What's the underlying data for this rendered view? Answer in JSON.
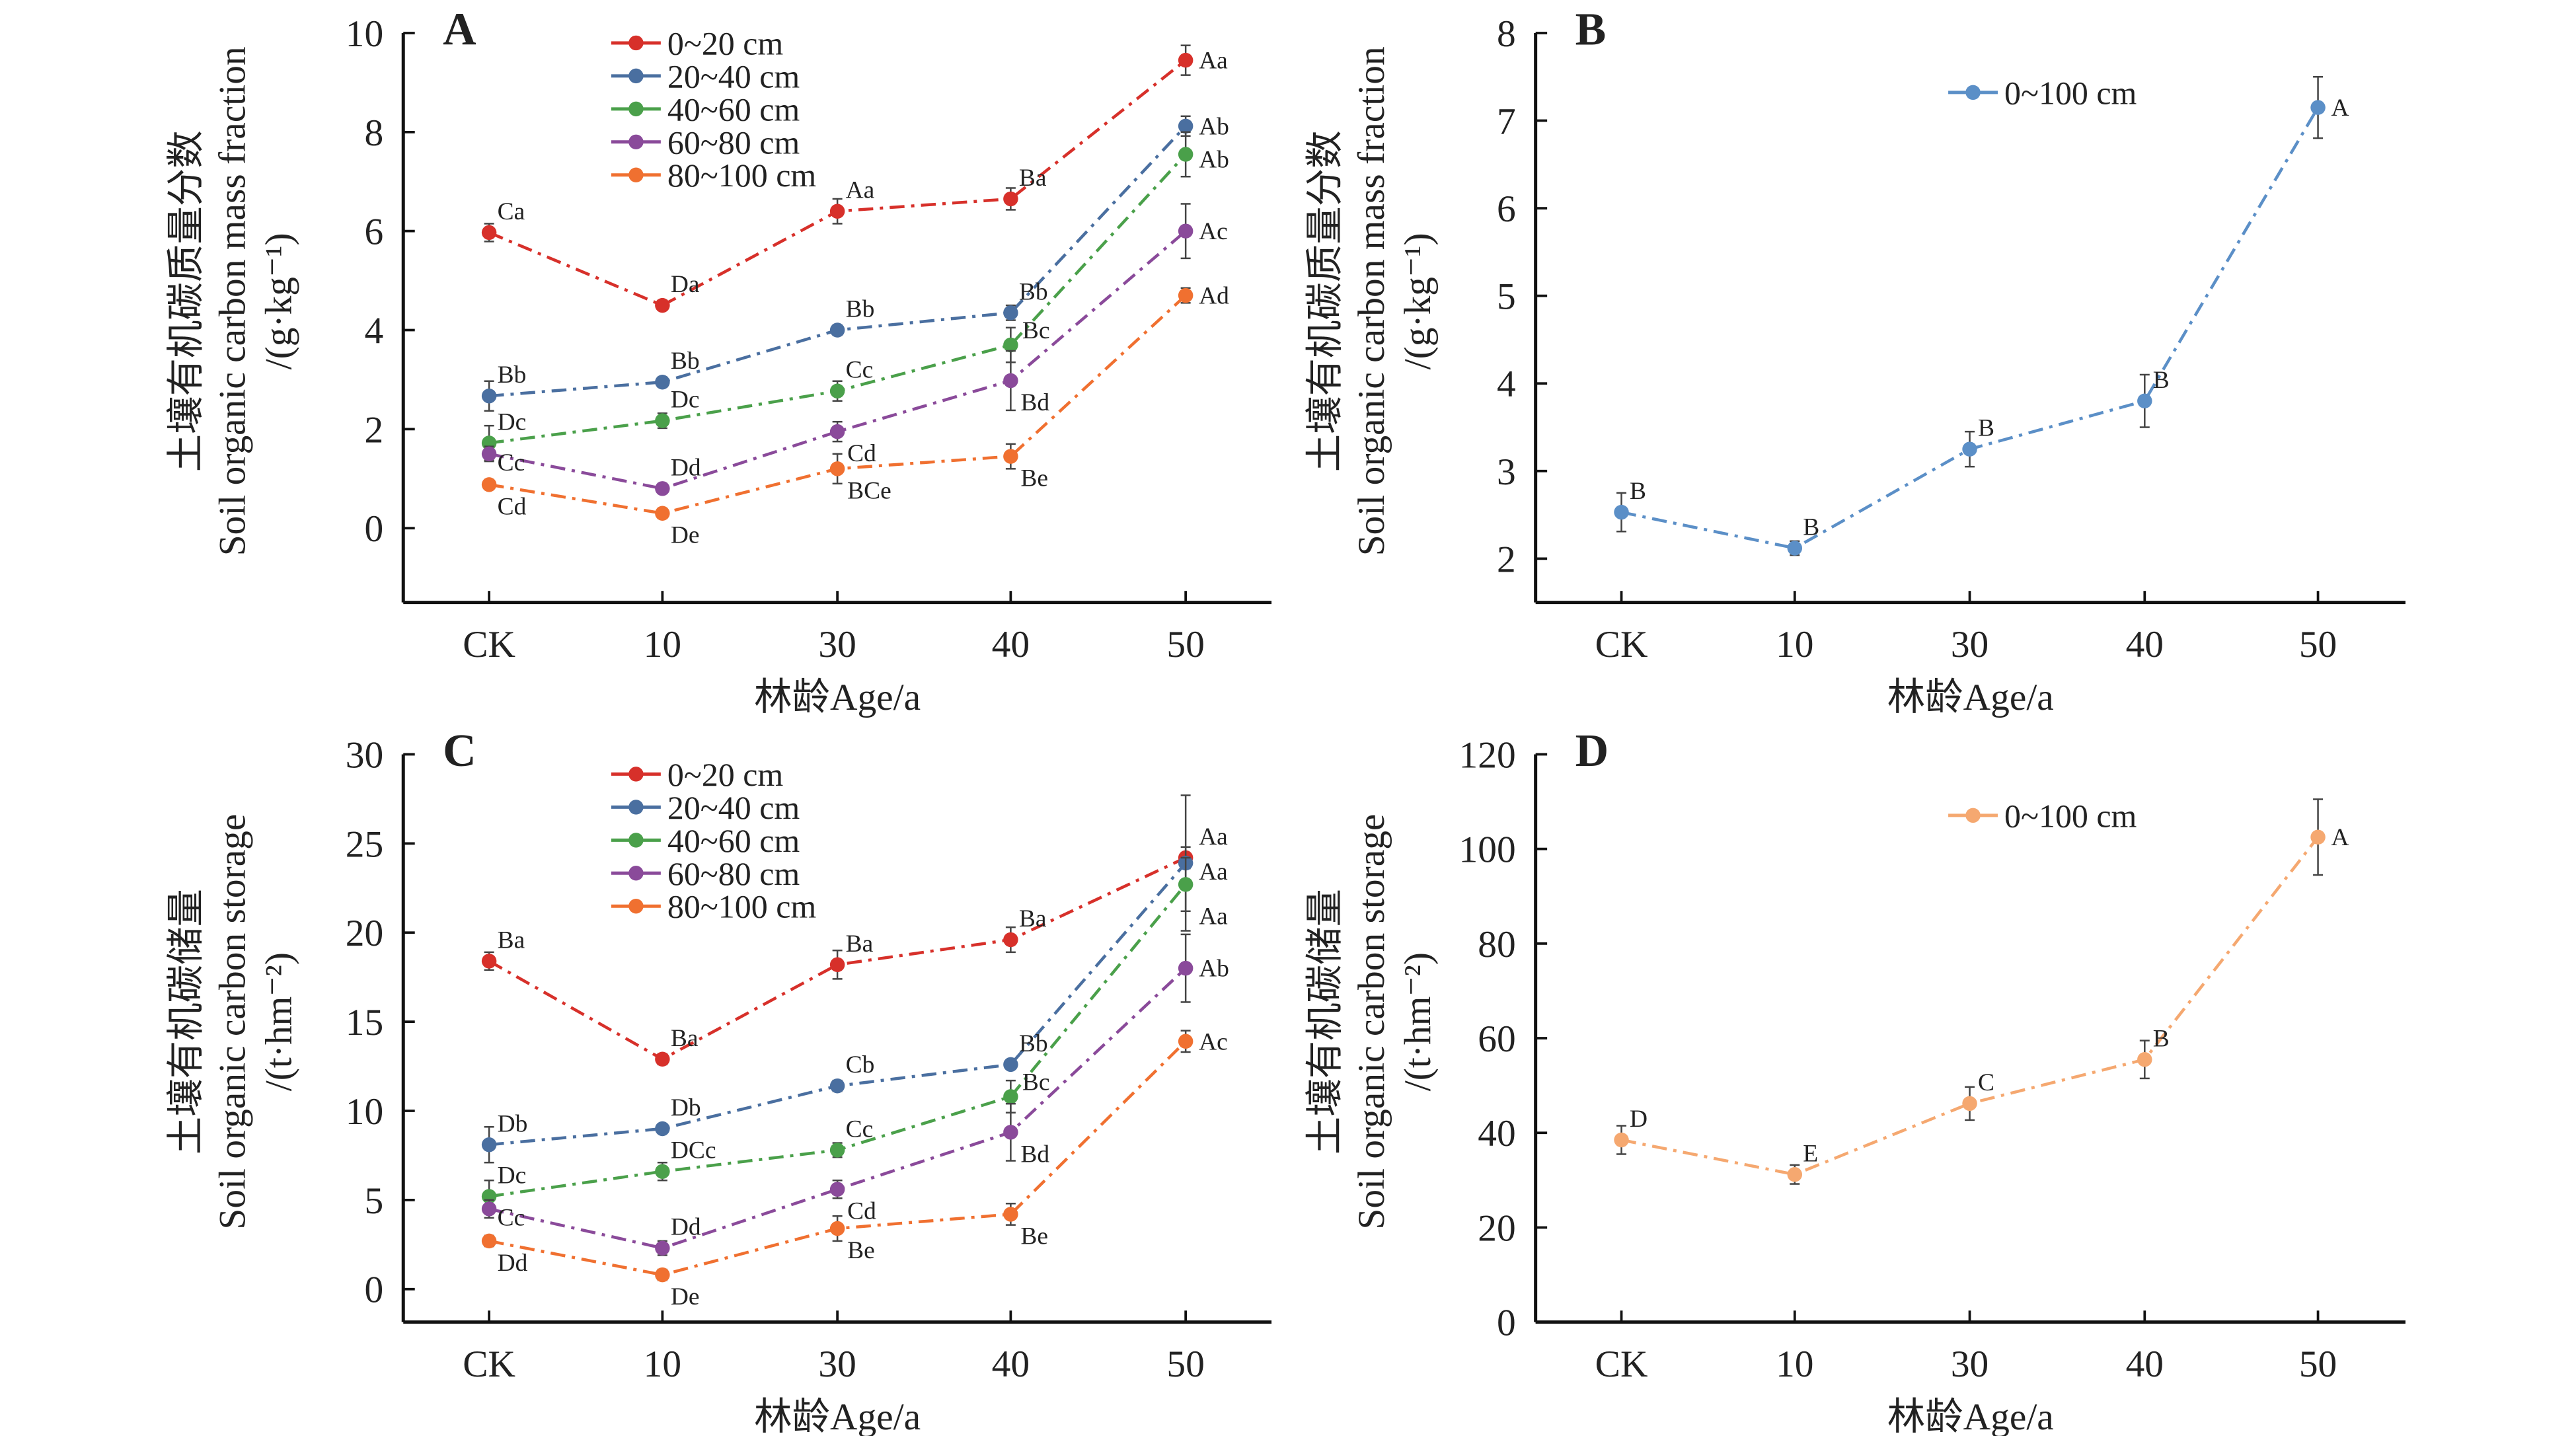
{
  "chart_data": [
    {
      "panel": "A",
      "type": "line",
      "categories": [
        "CK",
        "10",
        "30",
        "40",
        "50"
      ],
      "xlabel": "林龄Age/a",
      "ylabel": [
        "土壤有机碳质量分数",
        "Soil organic carbon mass fraction",
        "/(g·kg⁻¹)"
      ],
      "ylim": [
        -1.5,
        10
      ],
      "yticks": [
        0,
        2,
        4,
        6,
        8,
        10
      ],
      "legend": "top-center",
      "series": [
        {
          "name": "0~20 cm",
          "color": "#d7302a",
          "values": [
            5.97,
            4.5,
            6.4,
            6.65,
            9.45
          ],
          "errors": [
            0.18,
            0.1,
            0.25,
            0.22,
            0.3
          ],
          "labels": [
            "Ca",
            "Da",
            "Aa",
            "Ba",
            "Aa"
          ]
        },
        {
          "name": "20~40 cm",
          "color": "#4a6fa0",
          "values": [
            2.67,
            2.95,
            4.0,
            4.35,
            8.12
          ],
          "errors": [
            0.3,
            0.1,
            0.1,
            0.15,
            0.2
          ],
          "labels": [
            "Bb",
            "Bb",
            "Bb",
            "Bb",
            "Ab"
          ]
        },
        {
          "name": "40~60 cm",
          "color": "#4aa04a",
          "values": [
            1.72,
            2.17,
            2.77,
            3.7,
            7.55
          ],
          "errors": [
            0.35,
            0.15,
            0.2,
            0.35,
            0.45
          ],
          "labels": [
            "Dc",
            "Dc",
            "Cc",
            "Bc",
            "Ab"
          ]
        },
        {
          "name": "60~80 cm",
          "color": "#8a4a9a",
          "values": [
            1.5,
            0.8,
            1.95,
            2.98,
            6.0
          ],
          "errors": [
            0.15,
            0.1,
            0.2,
            0.6,
            0.55
          ],
          "labels": [
            "Cc",
            "Dd",
            "Cd",
            "Bd",
            "Ac"
          ]
        },
        {
          "name": "80~100 cm",
          "color": "#f07030",
          "values": [
            0.88,
            0.3,
            1.2,
            1.45,
            4.7
          ],
          "errors": [
            0.1,
            0.1,
            0.3,
            0.25,
            0.15
          ],
          "labels": [
            "Cd",
            "De",
            "BCe",
            "Be",
            "Ad"
          ]
        }
      ]
    },
    {
      "panel": "B",
      "type": "line",
      "categories": [
        "CK",
        "10",
        "30",
        "40",
        "50"
      ],
      "xlabel": "林龄Age/a",
      "ylabel": [
        "土壤有机碳质量分数",
        "Soil organic carbon mass fraction",
        "/(g·kg⁻¹)"
      ],
      "ylim": [
        1.5,
        8
      ],
      "yticks": [
        2,
        3,
        4,
        5,
        6,
        7,
        8
      ],
      "legend": "top-center",
      "series": [
        {
          "name": "0~100 cm",
          "color": "#5b8fc7",
          "values": [
            2.53,
            2.12,
            3.25,
            3.8,
            7.15
          ],
          "errors": [
            0.22,
            0.08,
            0.2,
            0.3,
            0.35
          ],
          "labels": [
            "B",
            "B",
            "B",
            "B",
            "A"
          ]
        }
      ]
    },
    {
      "panel": "C",
      "type": "line",
      "categories": [
        "CK",
        "10",
        "30",
        "40",
        "50"
      ],
      "xlabel": "林龄Age/a",
      "ylabel": [
        "土壤有机碳储量",
        "Soil organic carbon storage",
        "/(t·hm⁻²)"
      ],
      "ylim": [
        -1.85,
        30
      ],
      "yticks": [
        0,
        5,
        10,
        15,
        20,
        25,
        30
      ],
      "legend": "top-center",
      "series": [
        {
          "name": "0~20 cm",
          "color": "#d7302a",
          "values": [
            18.4,
            12.9,
            18.2,
            19.6,
            24.2
          ],
          "errors": [
            0.5,
            0.3,
            0.8,
            0.7,
            0.6
          ],
          "labels": [
            "Ba",
            "Ba",
            "Ba",
            "Ba",
            "Aa"
          ]
        },
        {
          "name": "20~40 cm",
          "color": "#4a6fa0",
          "values": [
            8.1,
            9.0,
            11.4,
            12.6,
            23.9
          ],
          "errors": [
            1.0,
            0.2,
            0.3,
            0.2,
            3.8
          ],
          "labels": [
            "Db",
            "Db",
            "Cb",
            "Bb",
            "Aa"
          ]
        },
        {
          "name": "40~60 cm",
          "color": "#4aa04a",
          "values": [
            5.2,
            6.6,
            7.8,
            10.8,
            22.7
          ],
          "errors": [
            0.9,
            0.5,
            0.4,
            0.9,
            1.5
          ],
          "labels": [
            "Dc",
            "DCc",
            "Cc",
            "Bc",
            "Aa"
          ]
        },
        {
          "name": "60~80 cm",
          "color": "#8a4a9a",
          "values": [
            4.5,
            2.3,
            5.6,
            8.8,
            18.0
          ],
          "errors": [
            0.5,
            0.4,
            0.5,
            1.6,
            1.9
          ],
          "labels": [
            "Cc",
            "Dd",
            "Cd",
            "Bd",
            "Ab"
          ]
        },
        {
          "name": "80~100 cm",
          "color": "#f07030",
          "values": [
            2.7,
            0.8,
            3.4,
            4.2,
            13.9
          ],
          "errors": [
            0.3,
            0.3,
            0.7,
            0.6,
            0.6
          ],
          "labels": [
            "Dd",
            "De",
            "Be",
            "Be",
            "Ac"
          ]
        }
      ]
    },
    {
      "panel": "D",
      "type": "line",
      "categories": [
        "CK",
        "10",
        "30",
        "40",
        "50"
      ],
      "xlabel": "林龄Age/a",
      "ylabel": [
        "土壤有机碳储量",
        "Soil organic carbon storage",
        "/(t·hm⁻²)"
      ],
      "ylim": [
        0,
        120
      ],
      "yticks": [
        0,
        20,
        40,
        60,
        80,
        100,
        120
      ],
      "legend": "top-center",
      "series": [
        {
          "name": "0~100 cm",
          "color": "#f5a870",
          "values": [
            38.5,
            31.2,
            46.2,
            55.5,
            102.5
          ],
          "errors": [
            3,
            2,
            3.5,
            4,
            8
          ],
          "labels": [
            "D",
            "E",
            "C",
            "B",
            "A"
          ]
        }
      ]
    }
  ]
}
